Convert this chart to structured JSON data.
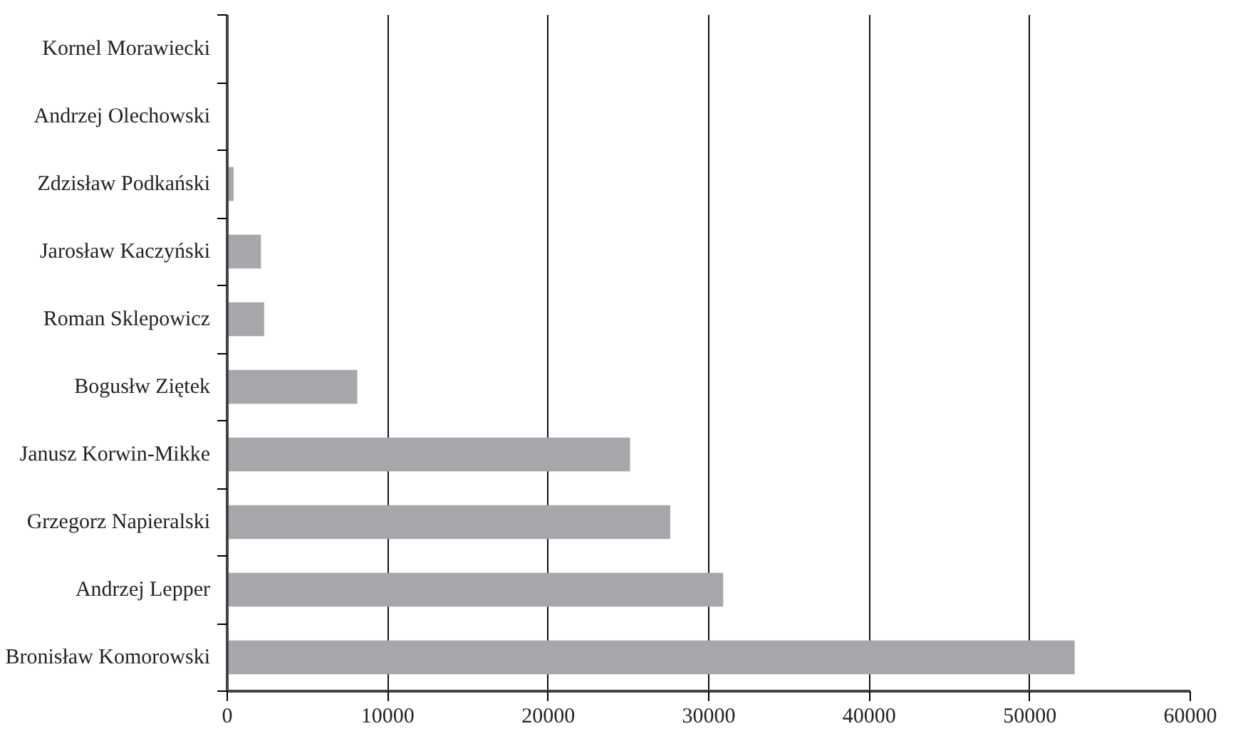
{
  "chart_data": {
    "type": "bar",
    "orientation": "horizontal",
    "categories": [
      "Kornel Morawiecki",
      "Andrzej Olechowski",
      "Zdzisław Podkański",
      "Jarosław Kaczyński",
      "Roman Sklepowicz",
      "Bogusłw Ziętek",
      "Janusz Korwin-Mikke",
      "Grzegorz Napieralski",
      "Andrzej Lepper",
      "Bronisław Komorowski"
    ],
    "values": [
      0,
      0,
      400,
      2100,
      2300,
      8100,
      25100,
      27600,
      30900,
      52800
    ],
    "color": "#a6a7aa",
    "xlim": [
      0,
      60000
    ],
    "xticks": [
      0,
      10000,
      20000,
      30000,
      40000,
      50000,
      60000
    ],
    "grid": "x"
  }
}
